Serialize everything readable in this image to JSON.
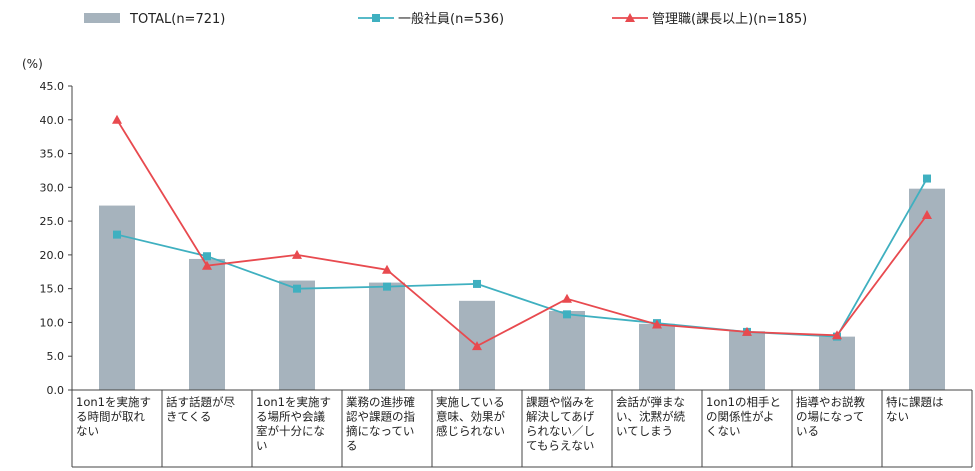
{
  "chart_data": {
    "type": "bar",
    "title": "",
    "xlabel": "",
    "ylabel": "(%)",
    "ylim": [
      0,
      45
    ],
    "yticks": [
      "0.0",
      "5.0",
      "10.0",
      "15.0",
      "20.0",
      "25.0",
      "30.0",
      "35.0",
      "40.0",
      "45.0"
    ],
    "categories": [
      [
        "1on1を実施す",
        "る時間が取れ",
        "ない"
      ],
      [
        "話す話題が尽",
        "きてくる"
      ],
      [
        "1on1を実施す",
        "る場所や会議",
        "室が十分にな",
        "い"
      ],
      [
        "業務の進捗確",
        "認や課題の指",
        "摘になってい",
        "る"
      ],
      [
        "実施している",
        "意味、効果が",
        "感じられない"
      ],
      [
        "課題や悩みを",
        "解決してあげ",
        "られない／し",
        "てもらえない"
      ],
      [
        "会話が弾まな",
        "い、沈黙が続",
        "いてしまう"
      ],
      [
        "1on1の相手と",
        "の関係性がよ",
        "くない"
      ],
      [
        "指導やお説教",
        "の場になって",
        "いる"
      ],
      [
        "特に課題は",
        "ない"
      ]
    ],
    "series": [
      {
        "name": "TOTAL(n=721)",
        "kind": "bar",
        "color": "#a6b3bd",
        "values": [
          27.3,
          19.4,
          16.2,
          15.9,
          13.2,
          11.7,
          9.8,
          8.7,
          7.9,
          29.8
        ]
      },
      {
        "name": "一般社員(n=536)",
        "kind": "line",
        "marker": "square",
        "color": "#3fb0c0",
        "values": [
          23.0,
          19.8,
          15.0,
          15.3,
          15.7,
          11.2,
          9.9,
          8.6,
          7.9,
          31.3
        ]
      },
      {
        "name": "管理職(課長以上)(n=185)",
        "kind": "line",
        "marker": "triangle",
        "color": "#e84a4f",
        "values": [
          40.0,
          18.4,
          20.0,
          17.8,
          6.5,
          13.5,
          9.7,
          8.6,
          8.1,
          25.9
        ]
      }
    ]
  }
}
